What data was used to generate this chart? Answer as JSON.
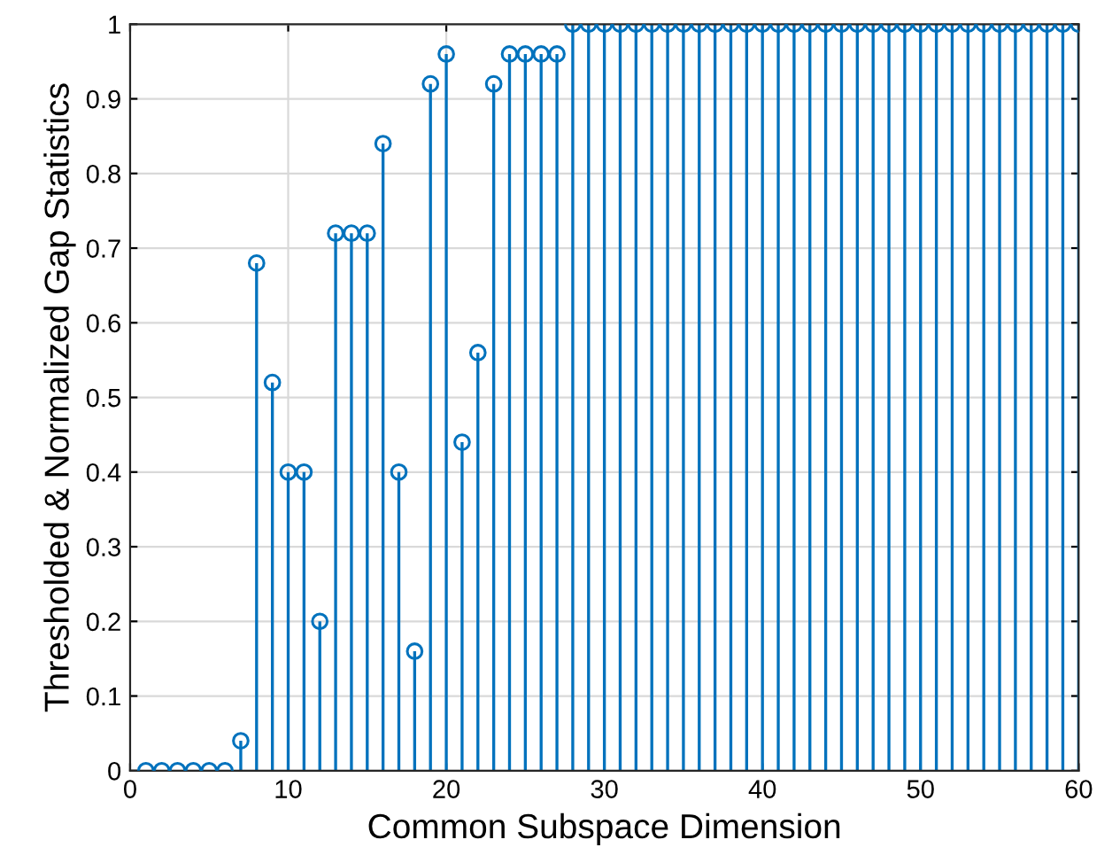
{
  "chart_data": {
    "type": "lollipop",
    "xlabel": "Common Subspace Dimension",
    "ylabel": "Thresholded & Normalized Gap Statistics",
    "x": [
      1,
      2,
      3,
      4,
      5,
      6,
      7,
      8,
      9,
      10,
      11,
      12,
      13,
      14,
      15,
      16,
      17,
      18,
      19,
      20,
      21,
      22,
      23,
      24,
      25,
      26,
      27,
      28,
      29,
      30,
      31,
      32,
      33,
      34,
      35,
      36,
      37,
      38,
      39,
      40,
      41,
      42,
      43,
      44,
      45,
      46,
      47,
      48,
      49,
      50,
      51,
      52,
      53,
      54,
      55,
      56,
      57,
      58,
      59,
      60
    ],
    "values": [
      0,
      0,
      0,
      0,
      0,
      0,
      0.04,
      0.68,
      0.52,
      0.4,
      0.4,
      0.2,
      0.72,
      0.72,
      0.72,
      0.84,
      0.4,
      0.16,
      0.92,
      0.96,
      0.44,
      0.56,
      0.92,
      0.96,
      0.96,
      0.96,
      0.96,
      1,
      1,
      1,
      1,
      1,
      1,
      1,
      1,
      1,
      1,
      1,
      1,
      1,
      1,
      1,
      1,
      1,
      1,
      1,
      1,
      1,
      1,
      1,
      1,
      1,
      1,
      1,
      1,
      1,
      1,
      1,
      1,
      1
    ],
    "color": "#0072bd",
    "marker": "circle",
    "grid": true,
    "xlim": [
      0,
      60
    ],
    "xticks": [
      0,
      10,
      20,
      30,
      40,
      50,
      60
    ],
    "ylim": [
      0,
      1
    ],
    "yticks": [
      0,
      0.1,
      0.2,
      0.3,
      0.4,
      0.5,
      0.6,
      0.7,
      0.8,
      0.9,
      1
    ]
  }
}
